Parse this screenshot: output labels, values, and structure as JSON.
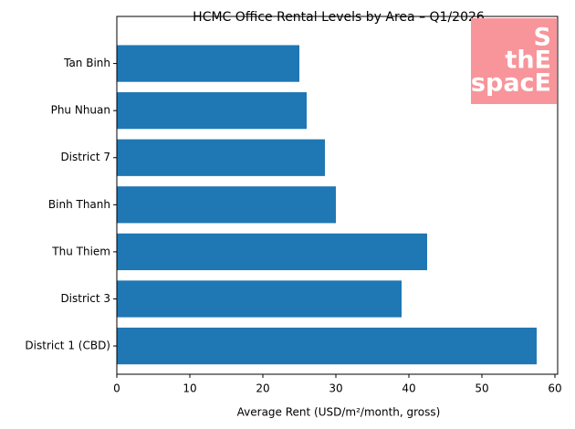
{
  "chart_data": {
    "type": "barh",
    "title": "HCMC Office Rental Levels by Area – Q1/2026",
    "x_label": "Average Rent (USD/m²/month, gross)",
    "categories": [
      "District 1 (CBD)",
      "District 3",
      "Thu Thiem",
      "Binh Thanh",
      "District 7",
      "Phu Nhuan",
      "Tan Binh"
    ],
    "values": [
      57.5,
      39,
      42.5,
      30,
      28.5,
      26,
      25
    ],
    "color": "#1f77b4",
    "xlim": [
      0,
      60.375
    ],
    "xticks": [
      0,
      10,
      20,
      30,
      40,
      50,
      60
    ],
    "grid": false,
    "logo": [
      "S",
      "thE",
      "spacE"
    ]
  }
}
